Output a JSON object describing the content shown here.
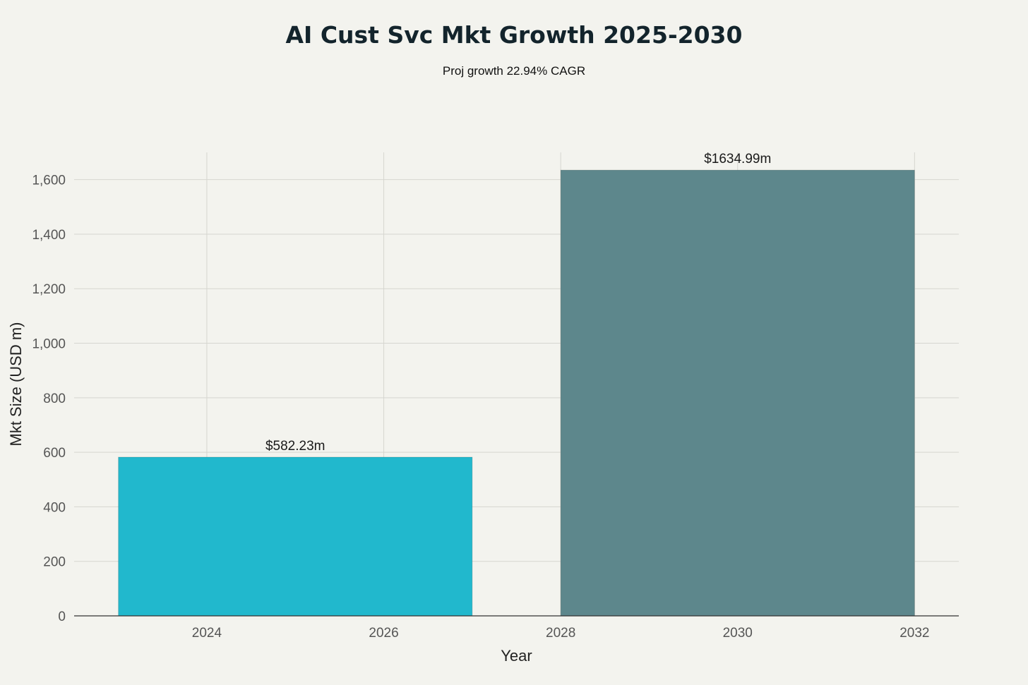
{
  "chart_data": {
    "type": "bar",
    "title": "AI Cust Svc Mkt Growth 2025-2030",
    "subtitle": "Proj growth 22.94% CAGR",
    "xlabel": "Year",
    "ylabel": "Mkt Size (USD m)",
    "xlim": [
      2022.5,
      2032.5
    ],
    "ylim": [
      0,
      1700
    ],
    "x_ticks": [
      2024,
      2026,
      2028,
      2030,
      2032
    ],
    "x_tick_labels": [
      "2024",
      "2026",
      "2028",
      "2030",
      "2032"
    ],
    "y_ticks": [
      0,
      200,
      400,
      600,
      800,
      1000,
      1200,
      1400,
      1600
    ],
    "y_tick_labels": [
      "0",
      "200",
      "400",
      "600",
      "800",
      "1,000",
      "1,200",
      "1,400",
      "1,600"
    ],
    "grid": true,
    "bars": [
      {
        "x": 2025,
        "width": 4,
        "value": 582.23,
        "label": "$582.23m",
        "color": "#21b8cd"
      },
      {
        "x": 2030,
        "width": 4,
        "value": 1634.99,
        "label": "$1634.99m",
        "color": "#5d878c"
      }
    ]
  }
}
